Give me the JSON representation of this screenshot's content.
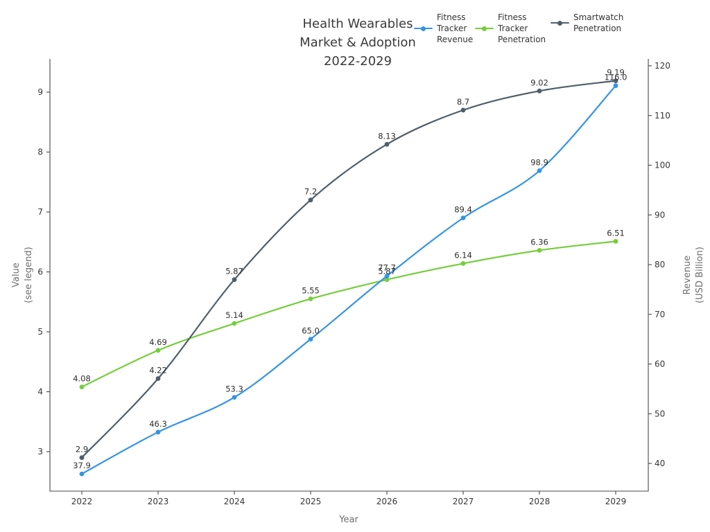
{
  "title": {
    "lines": [
      "Health Wearables",
      "Market & Adoption",
      "2022-2029"
    ]
  },
  "legend": {
    "items": [
      {
        "lines": [
          "Fitness",
          "Tracker",
          "Revenue"
        ]
      },
      {
        "lines": [
          "Fitness",
          "Tracker",
          "Penetration"
        ]
      },
      {
        "lines": [
          "Smartwatch",
          "Penetration"
        ]
      }
    ]
  },
  "axes": {
    "x_label": "Year",
    "left_label_lines": [
      "Value",
      "(see legend)"
    ],
    "right_label_lines": [
      "Revenue",
      "(USD Billion)"
    ],
    "x_tick_labels": [
      "2022",
      "2023",
      "2024",
      "2025",
      "2026",
      "2027",
      "2028",
      "2029"
    ],
    "left_tick_labels": [
      "3",
      "4",
      "5",
      "6",
      "7",
      "8",
      "9"
    ],
    "right_tick_labels": [
      "40",
      "50",
      "60",
      "70",
      "80",
      "90",
      "100",
      "110",
      "120"
    ]
  },
  "chart_data": {
    "type": "line",
    "title": "Health Wearables Market & Adoption 2022-2029",
    "x": [
      2022,
      2023,
      2024,
      2025,
      2026,
      2027,
      2028,
      2029
    ],
    "xlabel": "Year",
    "ylabel_left": "Value (see legend)",
    "ylabel_right": "Revenue (USD Billion)",
    "left_axis_ticks": [
      3,
      4,
      5,
      6,
      7,
      8,
      9
    ],
    "right_axis_ticks": [
      40,
      50,
      60,
      70,
      80,
      90,
      100,
      110,
      120
    ],
    "ylim_left": [
      2.3,
      9.6
    ],
    "ylim_right": [
      34.3,
      121.9
    ],
    "grid": false,
    "legend_position": "top",
    "point_labels_shown": true,
    "series": [
      {
        "name": "Fitness Tracker Revenue",
        "axis": "right",
        "color": "#3494e6",
        "marker": "circle",
        "values": [
          37.9,
          46.3,
          53.3,
          65.0,
          77.7,
          89.4,
          98.9,
          116.0
        ],
        "point_labels": [
          "37.9",
          "46.3",
          "53.3",
          "65.0",
          "77.7",
          "89.4",
          "98.9",
          "116.0"
        ]
      },
      {
        "name": "Fitness Tracker Penetration",
        "axis": "left",
        "color": "#74ce3b",
        "marker": "circle",
        "values": [
          4.08,
          4.69,
          5.14,
          5.55,
          5.87,
          6.14,
          6.36,
          6.51
        ],
        "point_labels": [
          "4.08",
          "4.69",
          "5.14",
          "5.55",
          "5.87",
          "6.14",
          "6.36",
          "6.51"
        ]
      },
      {
        "name": "Smartwatch Penetration",
        "axis": "left",
        "color": "#4e5e6a",
        "marker": "circle",
        "values": [
          2.9,
          4.22,
          5.87,
          7.2,
          8.13,
          8.7,
          9.02,
          9.19
        ],
        "point_labels": [
          "2.9",
          "4.22",
          "5.87",
          "7.2",
          "8.13",
          "8.7",
          "9.02",
          "9.19"
        ]
      }
    ]
  }
}
